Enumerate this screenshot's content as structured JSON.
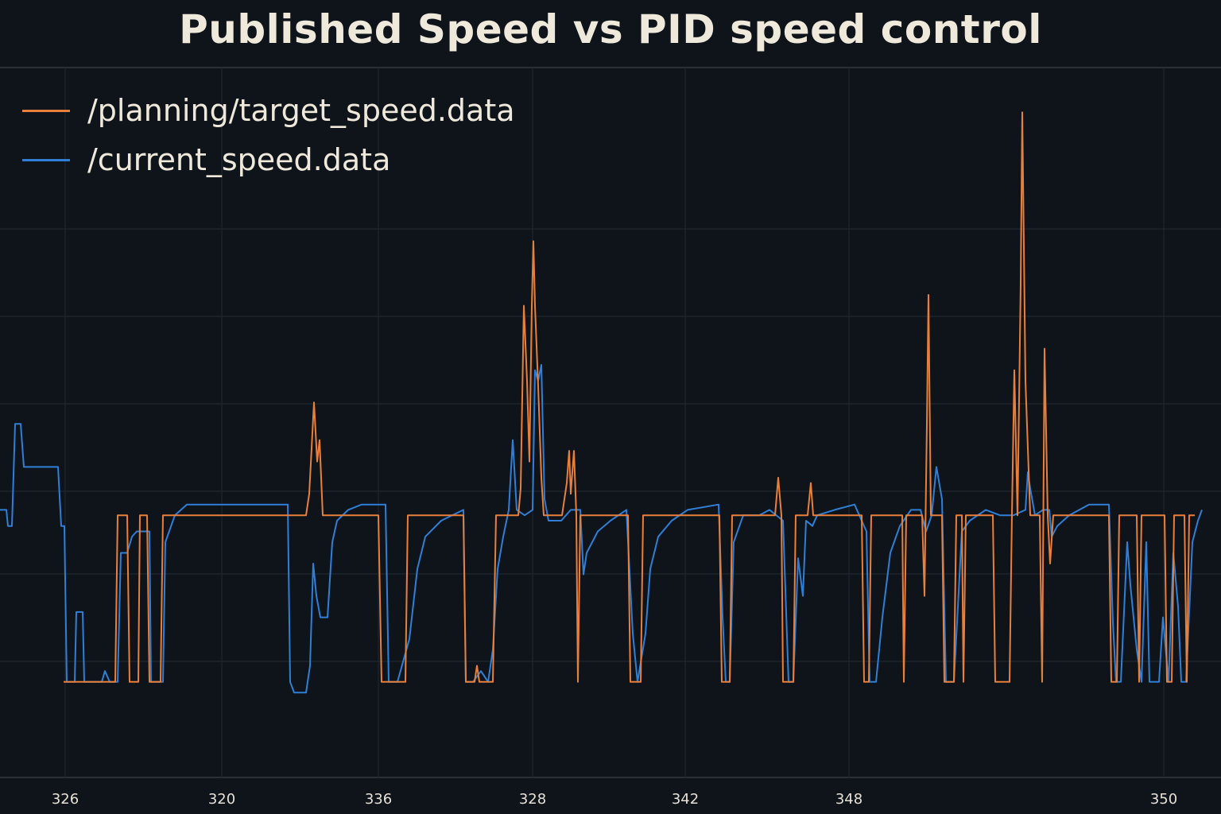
{
  "chart_data": {
    "type": "line",
    "title": "Published Speed vs PID speed control",
    "xlabel": "",
    "ylabel": "",
    "x_tick_labels": [
      "326",
      "320",
      "336",
      "328",
      "342",
      "348",
      "350"
    ],
    "xlim": [
      0,
      1536
    ],
    "ylim": [
      0,
      1
    ],
    "grid": true,
    "legend_position": "top-left",
    "series": [
      {
        "name": "/planning/target_speed.data",
        "color": "#e8803c",
        "points": [
          [
            80,
            0.24
          ],
          [
            145,
            0.24
          ],
          [
            148,
            0.55
          ],
          [
            160,
            0.55
          ],
          [
            163,
            0.24
          ],
          [
            174,
            0.24
          ],
          [
            176,
            0.55
          ],
          [
            185,
            0.55
          ],
          [
            188,
            0.24
          ],
          [
            202,
            0.24
          ],
          [
            205,
            0.55
          ],
          [
            385,
            0.55
          ],
          [
            389,
            0.59
          ],
          [
            395,
            0.76
          ],
          [
            399,
            0.65
          ],
          [
            402,
            0.69
          ],
          [
            406,
            0.55
          ],
          [
            476,
            0.55
          ],
          [
            480,
            0.24
          ],
          [
            510,
            0.24
          ],
          [
            513,
            0.55
          ],
          [
            583,
            0.55
          ],
          [
            586,
            0.24
          ],
          [
            597,
            0.24
          ],
          [
            600,
            0.27
          ],
          [
            603,
            0.24
          ],
          [
            620,
            0.24
          ],
          [
            624,
            0.55
          ],
          [
            652,
            0.55
          ],
          [
            655,
            0.6
          ],
          [
            659,
            0.94
          ],
          [
            663,
            0.8
          ],
          [
            666,
            0.65
          ],
          [
            669,
            0.94
          ],
          [
            671,
            1.06
          ],
          [
            673,
            0.94
          ],
          [
            677,
            0.79
          ],
          [
            681,
            0.62
          ],
          [
            684,
            0.55
          ],
          [
            707,
            0.55
          ],
          [
            713,
            0.61
          ],
          [
            716,
            0.67
          ],
          [
            718,
            0.59
          ],
          [
            722,
            0.67
          ],
          [
            725,
            0.55
          ],
          [
            727,
            0.24
          ],
          [
            730,
            0.55
          ],
          [
            790,
            0.55
          ],
          [
            793,
            0.24
          ],
          [
            806,
            0.24
          ],
          [
            809,
            0.55
          ],
          [
            905,
            0.55
          ],
          [
            908,
            0.24
          ],
          [
            918,
            0.24
          ],
          [
            921,
            0.55
          ],
          [
            975,
            0.55
          ],
          [
            979,
            0.62
          ],
          [
            983,
            0.55
          ],
          [
            985,
            0.24
          ],
          [
            998,
            0.24
          ],
          [
            1001,
            0.55
          ],
          [
            1016,
            0.55
          ],
          [
            1020,
            0.61
          ],
          [
            1023,
            0.55
          ],
          [
            1030,
            0.55
          ],
          [
            1084,
            0.55
          ],
          [
            1087,
            0.24
          ],
          [
            1093,
            0.24
          ],
          [
            1096,
            0.55
          ],
          [
            1135,
            0.55
          ],
          [
            1137,
            0.24
          ],
          [
            1140,
            0.55
          ],
          [
            1160,
            0.55
          ],
          [
            1163,
            0.4
          ],
          [
            1166,
            0.72
          ],
          [
            1168,
            0.96
          ],
          [
            1171,
            0.55
          ],
          [
            1185,
            0.55
          ],
          [
            1188,
            0.24
          ],
          [
            1200,
            0.24
          ],
          [
            1203,
            0.55
          ],
          [
            1210,
            0.55
          ],
          [
            1212,
            0.24
          ],
          [
            1215,
            0.55
          ],
          [
            1249,
            0.55
          ],
          [
            1252,
            0.24
          ],
          [
            1270,
            0.24
          ],
          [
            1273,
            0.55
          ],
          [
            1276,
            0.82
          ],
          [
            1280,
            0.55
          ],
          [
            1284,
            0.98
          ],
          [
            1286,
            1.3
          ],
          [
            1290,
            0.8
          ],
          [
            1296,
            0.55
          ],
          [
            1308,
            0.55
          ],
          [
            1311,
            0.24
          ],
          [
            1314,
            0.86
          ],
          [
            1318,
            0.55
          ],
          [
            1321,
            0.46
          ],
          [
            1325,
            0.55
          ],
          [
            1395,
            0.55
          ],
          [
            1398,
            0.24
          ],
          [
            1405,
            0.24
          ],
          [
            1408,
            0.55
          ],
          [
            1430,
            0.55
          ],
          [
            1433,
            0.24
          ],
          [
            1436,
            0.55
          ],
          [
            1465,
            0.55
          ],
          [
            1468,
            0.24
          ],
          [
            1474,
            0.24
          ],
          [
            1477,
            0.55
          ],
          [
            1490,
            0.55
          ],
          [
            1493,
            0.24
          ],
          [
            1496,
            0.55
          ],
          [
            1503,
            0.55
          ]
        ]
      },
      {
        "name": "/current_speed.data",
        "color": "#2f7fd6",
        "points": [
          [
            0,
            0.56
          ],
          [
            8,
            0.56
          ],
          [
            10,
            0.53
          ],
          [
            15,
            0.53
          ],
          [
            19,
            0.72
          ],
          [
            26,
            0.72
          ],
          [
            30,
            0.64
          ],
          [
            73,
            0.64
          ],
          [
            77,
            0.53
          ],
          [
            81,
            0.53
          ],
          [
            84,
            0.24
          ],
          [
            94,
            0.24
          ],
          [
            96,
            0.37
          ],
          [
            104,
            0.37
          ],
          [
            106,
            0.24
          ],
          [
            128,
            0.24
          ],
          [
            132,
            0.26
          ],
          [
            138,
            0.24
          ],
          [
            148,
            0.24
          ],
          [
            152,
            0.48
          ],
          [
            160,
            0.48
          ],
          [
            166,
            0.51
          ],
          [
            172,
            0.52
          ],
          [
            188,
            0.52
          ],
          [
            190,
            0.24
          ],
          [
            205,
            0.24
          ],
          [
            208,
            0.5
          ],
          [
            220,
            0.55
          ],
          [
            235,
            0.57
          ],
          [
            270,
            0.57
          ],
          [
            362,
            0.57
          ],
          [
            365,
            0.24
          ],
          [
            370,
            0.22
          ],
          [
            385,
            0.22
          ],
          [
            390,
            0.27
          ],
          [
            394,
            0.46
          ],
          [
            398,
            0.4
          ],
          [
            403,
            0.36
          ],
          [
            412,
            0.36
          ],
          [
            418,
            0.5
          ],
          [
            424,
            0.54
          ],
          [
            438,
            0.56
          ],
          [
            455,
            0.57
          ],
          [
            485,
            0.57
          ],
          [
            489,
            0.24
          ],
          [
            500,
            0.24
          ],
          [
            515,
            0.32
          ],
          [
            525,
            0.45
          ],
          [
            535,
            0.51
          ],
          [
            555,
            0.54
          ],
          [
            583,
            0.56
          ],
          [
            586,
            0.24
          ],
          [
            595,
            0.24
          ],
          [
            605,
            0.26
          ],
          [
            614,
            0.24
          ],
          [
            620,
            0.3
          ],
          [
            626,
            0.45
          ],
          [
            633,
            0.51
          ],
          [
            640,
            0.56
          ],
          [
            645,
            0.69
          ],
          [
            650,
            0.56
          ],
          [
            660,
            0.55
          ],
          [
            670,
            0.56
          ],
          [
            673,
            0.82
          ],
          [
            677,
            0.8
          ],
          [
            681,
            0.83
          ],
          [
            685,
            0.58
          ],
          [
            690,
            0.54
          ],
          [
            706,
            0.54
          ],
          [
            712,
            0.55
          ],
          [
            718,
            0.56
          ],
          [
            730,
            0.56
          ],
          [
            734,
            0.44
          ],
          [
            738,
            0.48
          ],
          [
            745,
            0.5
          ],
          [
            752,
            0.52
          ],
          [
            768,
            0.54
          ],
          [
            788,
            0.56
          ],
          [
            796,
            0.33
          ],
          [
            802,
            0.24
          ],
          [
            812,
            0.33
          ],
          [
            818,
            0.45
          ],
          [
            828,
            0.51
          ],
          [
            845,
            0.54
          ],
          [
            865,
            0.56
          ],
          [
            904,
            0.57
          ],
          [
            909,
            0.36
          ],
          [
            913,
            0.24
          ],
          [
            918,
            0.24
          ],
          [
            923,
            0.5
          ],
          [
            935,
            0.55
          ],
          [
            955,
            0.55
          ],
          [
            968,
            0.56
          ],
          [
            985,
            0.54
          ],
          [
            992,
            0.24
          ],
          [
            998,
            0.24
          ],
          [
            1004,
            0.47
          ],
          [
            1010,
            0.4
          ],
          [
            1014,
            0.54
          ],
          [
            1022,
            0.53
          ],
          [
            1028,
            0.55
          ],
          [
            1050,
            0.56
          ],
          [
            1075,
            0.57
          ],
          [
            1090,
            0.52
          ],
          [
            1094,
            0.24
          ],
          [
            1102,
            0.24
          ],
          [
            1110,
            0.36
          ],
          [
            1120,
            0.48
          ],
          [
            1132,
            0.53
          ],
          [
            1146,
            0.56
          ],
          [
            1158,
            0.56
          ],
          [
            1165,
            0.52
          ],
          [
            1172,
            0.55
          ],
          [
            1178,
            0.64
          ],
          [
            1185,
            0.58
          ],
          [
            1190,
            0.24
          ],
          [
            1200,
            0.24
          ],
          [
            1210,
            0.52
          ],
          [
            1220,
            0.54
          ],
          [
            1240,
            0.56
          ],
          [
            1258,
            0.55
          ],
          [
            1275,
            0.55
          ],
          [
            1290,
            0.56
          ],
          [
            1293,
            0.63
          ],
          [
            1296,
            0.6
          ],
          [
            1302,
            0.55
          ],
          [
            1312,
            0.56
          ],
          [
            1320,
            0.56
          ],
          [
            1323,
            0.51
          ],
          [
            1330,
            0.53
          ],
          [
            1345,
            0.55
          ],
          [
            1370,
            0.57
          ],
          [
            1395,
            0.57
          ],
          [
            1400,
            0.35
          ],
          [
            1404,
            0.24
          ],
          [
            1410,
            0.24
          ],
          [
            1418,
            0.5
          ],
          [
            1422,
            0.42
          ],
          [
            1430,
            0.3
          ],
          [
            1436,
            0.24
          ],
          [
            1442,
            0.5
          ],
          [
            1446,
            0.24
          ],
          [
            1458,
            0.24
          ],
          [
            1463,
            0.36
          ],
          [
            1470,
            0.24
          ],
          [
            1476,
            0.48
          ],
          [
            1482,
            0.38
          ],
          [
            1486,
            0.24
          ],
          [
            1492,
            0.24
          ],
          [
            1500,
            0.5
          ],
          [
            1507,
            0.54
          ],
          [
            1512,
            0.56
          ]
        ]
      }
    ]
  }
}
